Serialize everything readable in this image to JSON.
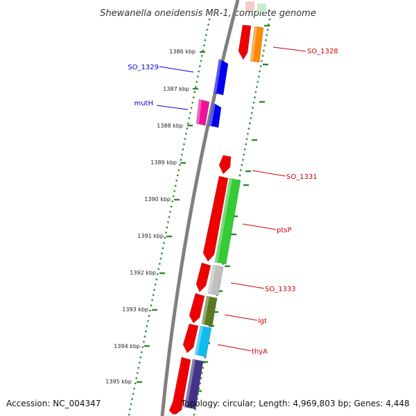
{
  "title": "Shewanella oneidensis MR-1, complete genome",
  "footer": {
    "accession": "Accession: NC_004347",
    "topology": "Topology: circular; Length: 4,969,803 bp; Genes: 4,448"
  },
  "scale": {
    "unit": "kbp",
    "ticks": [
      "1386 kbp",
      "1387 kbp",
      "1388 kbp",
      "1389 kbp",
      "1390 kbp",
      "1391 kbp",
      "1392 kbp",
      "1393 kbp",
      "1394 kbp",
      "1395 kbp"
    ]
  },
  "colors": {
    "backbone": "#808080",
    "tick_dots": "#2a8a2a",
    "label_reverse": "#0000cc",
    "label_forward": "#cc0000"
  },
  "genes_reverse_strand": [
    {
      "name": "SO_1329",
      "color": "#0000ee"
    },
    {
      "name": "mutH",
      "color": "#ee1199"
    },
    {
      "name": "",
      "color": "#0000ee"
    }
  ],
  "genes_forward_inner": [
    {
      "name": "",
      "color": "#ee0000"
    },
    {
      "name": "",
      "color": "#ee0000"
    },
    {
      "name": "",
      "color": "#ee0000"
    },
    {
      "name": "",
      "color": "#ee0000"
    },
    {
      "name": "",
      "color": "#ee0000"
    },
    {
      "name": "",
      "color": "#ee0000"
    },
    {
      "name": "",
      "color": "#ee0000"
    },
    {
      "name": "",
      "color": "#ee0000"
    }
  ],
  "genes_forward_outer": [
    {
      "name": "SO_1328",
      "color": "#ff8800"
    },
    {
      "name": "ptsP",
      "color": "#33cc33"
    },
    {
      "name": "SO_1333",
      "color": "#c0c0c0"
    },
    {
      "name": "lgt",
      "color": "#5a7a22"
    },
    {
      "name": "thyA",
      "color": "#11bbee"
    },
    {
      "name": "",
      "color": "#443388"
    }
  ],
  "gene_labels": [
    {
      "text": "SO_1329",
      "strand": "reverse"
    },
    {
      "text": "mutH",
      "strand": "reverse"
    },
    {
      "text": "SO_1328",
      "strand": "forward"
    },
    {
      "text": "SO_1331",
      "strand": "forward"
    },
    {
      "text": "ptsP",
      "strand": "forward"
    },
    {
      "text": "SO_1333",
      "strand": "forward"
    },
    {
      "text": "lgt",
      "strand": "forward"
    },
    {
      "text": "thyA",
      "strand": "forward"
    }
  ]
}
